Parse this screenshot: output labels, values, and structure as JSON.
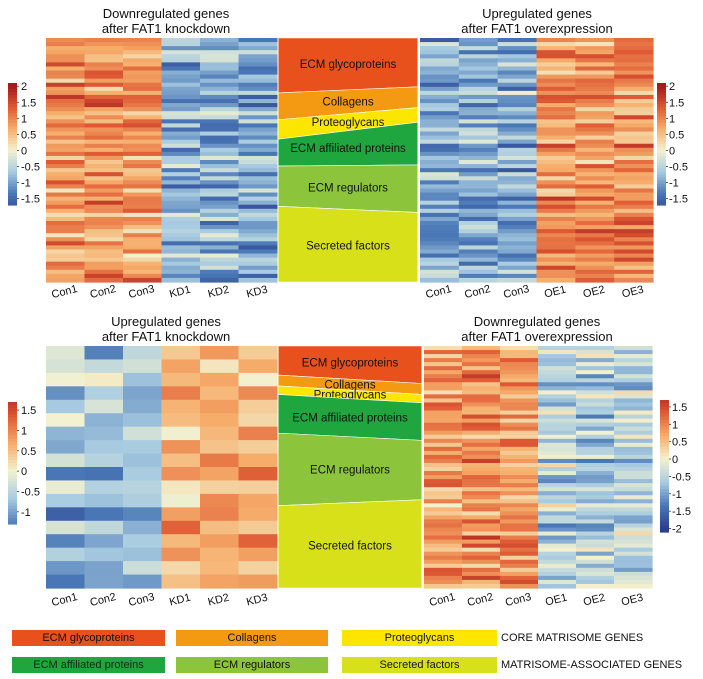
{
  "chart_data": [
    {
      "type": "heatmap",
      "id": "p1",
      "title_lines": [
        "Downregulated genes",
        "after FAT1 knockdown"
      ],
      "columns": [
        "Con1",
        "Con2",
        "Con3",
        "KD1",
        "KD2",
        "KD3"
      ],
      "scale_ticks": [
        "2",
        "1.5",
        "1",
        "0.5",
        "0",
        "-0.5",
        "-1",
        "-1.5"
      ],
      "scale_range": [
        -1.7,
        2.1
      ],
      "n_rows": 60,
      "seed": 11,
      "group_means": [
        0.9,
        -0.9
      ]
    },
    {
      "type": "heatmap",
      "id": "p2",
      "title_lines": [
        "Upregulated genes",
        "after FAT1 overexpression"
      ],
      "columns": [
        "Con1",
        "Con2",
        "Con3",
        "OE1",
        "OE2",
        "OE3"
      ],
      "scale_ticks": [
        "2",
        "1.5",
        "1",
        "0.5",
        "0",
        "-0.5",
        "-1",
        "-1.5"
      ],
      "scale_range": [
        -1.7,
        2.1
      ],
      "n_rows": 60,
      "seed": 23,
      "group_means": [
        -0.9,
        0.9
      ]
    },
    {
      "type": "heatmap",
      "id": "p3",
      "title_lines": [
        "Upregulated genes",
        "after FAT1 knockdown"
      ],
      "columns": [
        "Con1",
        "Con2",
        "Con3",
        "KD1",
        "KD2",
        "KD3"
      ],
      "scale_ticks": [
        "1.5",
        "1",
        "0.5",
        "0",
        "-0.5",
        "-1"
      ],
      "scale_range": [
        -1.3,
        1.7
      ],
      "n_rows": 18,
      "seed": 37,
      "group_means": [
        -0.75,
        0.75
      ]
    },
    {
      "type": "heatmap",
      "id": "p4",
      "title_lines": [
        "Downregulated genes",
        "after FAT1 overexpression"
      ],
      "columns": [
        "Con1",
        "Con2",
        "Con3",
        "OE1",
        "OE2",
        "OE3"
      ],
      "scale_ticks": [
        "1.5",
        "1",
        "0.5",
        "0",
        "-0.5",
        "-1",
        "-1.5",
        "-2"
      ],
      "scale_range": [
        -2.1,
        1.7
      ],
      "n_rows": 60,
      "seed": 51,
      "group_means": [
        0.9,
        -0.55
      ]
    },
    {
      "type": "stacked-proportion",
      "id": "band-top",
      "categories": [
        "ECM glycoproteins",
        "Collagens",
        "Proteoglycans",
        "ECM affiliated proteins",
        "ECM regulators",
        "Secreted factors"
      ],
      "left_fractions": [
        0.225,
        0.11,
        0.08,
        0.11,
        0.165,
        0.31
      ],
      "right_fractions": [
        0.2,
        0.085,
        0.06,
        0.175,
        0.195,
        0.285
      ]
    },
    {
      "type": "stacked-proportion",
      "id": "band-bottom",
      "categories": [
        "ECM glycoproteins",
        "Collagens",
        "Proteoglycans",
        "ECM affiliated proteins",
        "ECM regulators",
        "Secreted factors"
      ],
      "left_fractions": [
        0.12,
        0.045,
        0.035,
        0.16,
        0.3,
        0.34
      ],
      "right_fractions": [
        0.155,
        0.045,
        0.035,
        0.155,
        0.245,
        0.365
      ]
    }
  ],
  "legend": {
    "rows": [
      {
        "items": [
          {
            "label": "ECM glycoproteins",
            "color": "#E8511C"
          },
          {
            "label": "Collagens",
            "color": "#F39A12"
          },
          {
            "label": "Proteoglycans",
            "color": "#FCE600"
          }
        ],
        "group": "CORE MATRISOME GENES"
      },
      {
        "items": [
          {
            "label": "ECM affiliated proteins",
            "color": "#1FA63F"
          },
          {
            "label": "ECM regulators",
            "color": "#8CC43C"
          },
          {
            "label": "Secreted factors",
            "color": "#D8E01A"
          }
        ],
        "group": "MATRISOME-ASSOCIATED GENES"
      }
    ]
  },
  "colors": {
    "ECM glycoproteins": "#E8511C",
    "Collagens": "#F39A12",
    "Proteoglycans": "#FCE600",
    "ECM affiliated proteins": "#1FA63F",
    "ECM regulators": "#8CC43C",
    "Secreted factors": "#D8E01A",
    "ramp": [
      "#2C3D8E",
      "#4A78B6",
      "#A9CCE1",
      "#F3F1CF",
      "#F6AE6B",
      "#DF5A34",
      "#A31A1C"
    ]
  }
}
